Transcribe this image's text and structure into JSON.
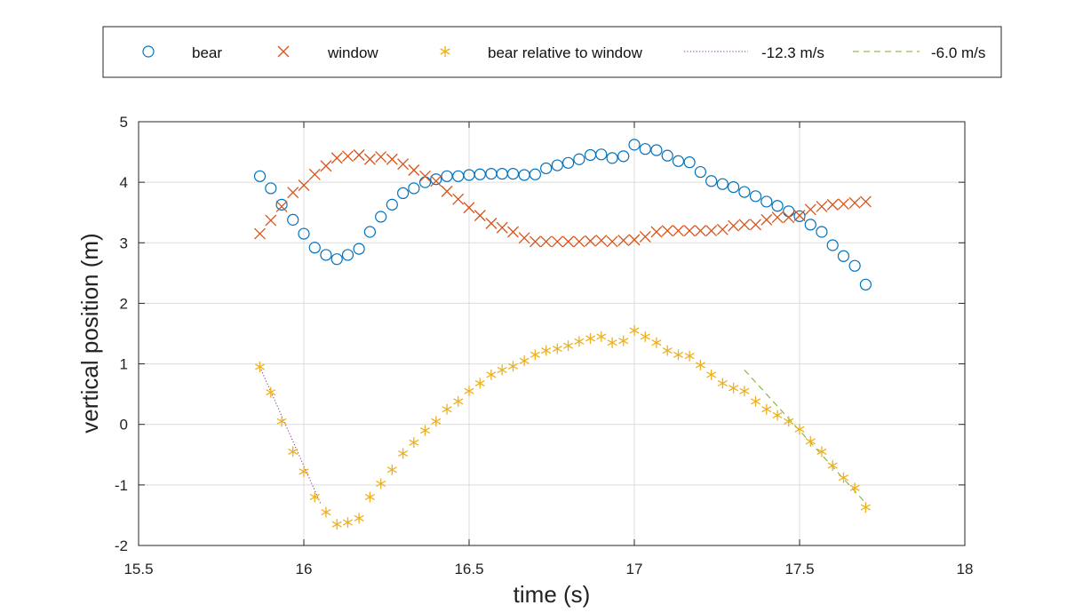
{
  "chart_data": {
    "type": "scatter",
    "xlabel": "time (s)",
    "ylabel": "vertical position (m)",
    "xlim": [
      15.5,
      18
    ],
    "ylim": [
      -2,
      5
    ],
    "xticks": [
      "15.5",
      "16",
      "16.5",
      "17",
      "17.5",
      "18"
    ],
    "yticks": [
      "-2",
      "-1",
      "0",
      "1",
      "2",
      "3",
      "4",
      "5"
    ],
    "grid": true,
    "legend_position": "top (outside)",
    "colors": {
      "bear": "#0072BD",
      "window": "#D95319",
      "relative": "#EDB120",
      "fit1": "#7E2F8E",
      "fit2": "#77AC30"
    },
    "series": [
      {
        "name": "bear",
        "marker": "circle",
        "color": "#0072BD",
        "x": [
          15.867,
          15.9,
          15.933,
          15.967,
          16.0,
          16.033,
          16.067,
          16.1,
          16.133,
          16.167,
          16.2,
          16.233,
          16.267,
          16.3,
          16.333,
          16.367,
          16.4,
          16.433,
          16.467,
          16.5,
          16.533,
          16.567,
          16.6,
          16.633,
          16.667,
          16.7,
          16.733,
          16.767,
          16.8,
          16.833,
          16.867,
          16.9,
          16.933,
          16.967,
          17.0,
          17.033,
          17.067,
          17.1,
          17.133,
          17.167,
          17.2,
          17.233,
          17.267,
          17.3,
          17.333,
          17.367,
          17.4,
          17.433,
          17.467,
          17.5,
          17.533,
          17.567,
          17.6,
          17.633,
          17.667,
          17.7
        ],
        "y": [
          4.1,
          3.9,
          3.63,
          3.38,
          3.15,
          2.92,
          2.8,
          2.73,
          2.8,
          2.9,
          3.18,
          3.43,
          3.63,
          3.82,
          3.9,
          4.0,
          4.05,
          4.1,
          4.1,
          4.12,
          4.13,
          4.14,
          4.14,
          4.14,
          4.12,
          4.13,
          4.23,
          4.28,
          4.32,
          4.38,
          4.45,
          4.46,
          4.4,
          4.43,
          4.62,
          4.55,
          4.53,
          4.44,
          4.35,
          4.33,
          4.17,
          4.02,
          3.97,
          3.92,
          3.84,
          3.77,
          3.68,
          3.61,
          3.52,
          3.44,
          3.3,
          3.18,
          2.96,
          2.78,
          2.62,
          2.31
        ]
      },
      {
        "name": "window",
        "marker": "x",
        "color": "#D95319",
        "x": [
          15.867,
          15.9,
          15.933,
          15.967,
          16.0,
          16.033,
          16.067,
          16.1,
          16.133,
          16.167,
          16.2,
          16.233,
          16.267,
          16.3,
          16.333,
          16.367,
          16.4,
          16.433,
          16.467,
          16.5,
          16.533,
          16.567,
          16.6,
          16.633,
          16.667,
          16.7,
          16.733,
          16.767,
          16.8,
          16.833,
          16.867,
          16.9,
          16.933,
          16.967,
          17.0,
          17.033,
          17.067,
          17.1,
          17.133,
          17.167,
          17.2,
          17.233,
          17.267,
          17.3,
          17.333,
          17.367,
          17.4,
          17.433,
          17.467,
          17.5,
          17.533,
          17.567,
          17.6,
          17.633,
          17.667,
          17.7
        ],
        "y": [
          3.15,
          3.37,
          3.6,
          3.83,
          3.95,
          4.13,
          4.27,
          4.4,
          4.43,
          4.45,
          4.38,
          4.42,
          4.38,
          4.3,
          4.2,
          4.1,
          4.02,
          3.85,
          3.72,
          3.58,
          3.45,
          3.32,
          3.25,
          3.18,
          3.08,
          3.02,
          3.02,
          3.02,
          3.02,
          3.02,
          3.03,
          3.04,
          3.02,
          3.04,
          3.05,
          3.1,
          3.18,
          3.2,
          3.2,
          3.2,
          3.2,
          3.2,
          3.22,
          3.28,
          3.3,
          3.3,
          3.38,
          3.42,
          3.42,
          3.45,
          3.55,
          3.6,
          3.63,
          3.64,
          3.66,
          3.68
        ]
      },
      {
        "name": "bear relative to window",
        "marker": "asterisk",
        "color": "#EDB120",
        "x": [
          15.867,
          15.9,
          15.933,
          15.967,
          16.0,
          16.033,
          16.067,
          16.1,
          16.133,
          16.167,
          16.2,
          16.233,
          16.267,
          16.3,
          16.333,
          16.367,
          16.4,
          16.433,
          16.467,
          16.5,
          16.533,
          16.567,
          16.6,
          16.633,
          16.667,
          16.7,
          16.733,
          16.767,
          16.8,
          16.833,
          16.867,
          16.9,
          16.933,
          16.967,
          17.0,
          17.033,
          17.067,
          17.1,
          17.133,
          17.167,
          17.2,
          17.233,
          17.267,
          17.3,
          17.333,
          17.367,
          17.4,
          17.433,
          17.467,
          17.5,
          17.533,
          17.567,
          17.6,
          17.633,
          17.667,
          17.7
        ],
        "y": [
          0.95,
          0.53,
          0.05,
          -0.45,
          -0.78,
          -1.2,
          -1.45,
          -1.65,
          -1.62,
          -1.55,
          -1.2,
          -0.98,
          -0.75,
          -0.48,
          -0.3,
          -0.1,
          0.05,
          0.25,
          0.38,
          0.55,
          0.68,
          0.82,
          0.9,
          0.96,
          1.05,
          1.15,
          1.22,
          1.25,
          1.3,
          1.37,
          1.42,
          1.45,
          1.35,
          1.38,
          1.55,
          1.45,
          1.35,
          1.22,
          1.15,
          1.13,
          0.98,
          0.82,
          0.68,
          0.6,
          0.55,
          0.38,
          0.25,
          0.15,
          0.05,
          -0.08,
          -0.28,
          -0.45,
          -0.68,
          -0.88,
          -1.05,
          -1.37
        ]
      }
    ],
    "fits": [
      {
        "name": "-12.3 m/s",
        "style": "dotted",
        "color": "#7E2F8E",
        "x": [
          15.867,
          16.05
        ],
        "y": [
          0.95,
          -1.3
        ]
      },
      {
        "name": "-6.0 m/s",
        "style": "dashed",
        "color": "#77AC30",
        "x": [
          17.333,
          17.7
        ],
        "y": [
          0.9,
          -1.3
        ]
      }
    ]
  }
}
